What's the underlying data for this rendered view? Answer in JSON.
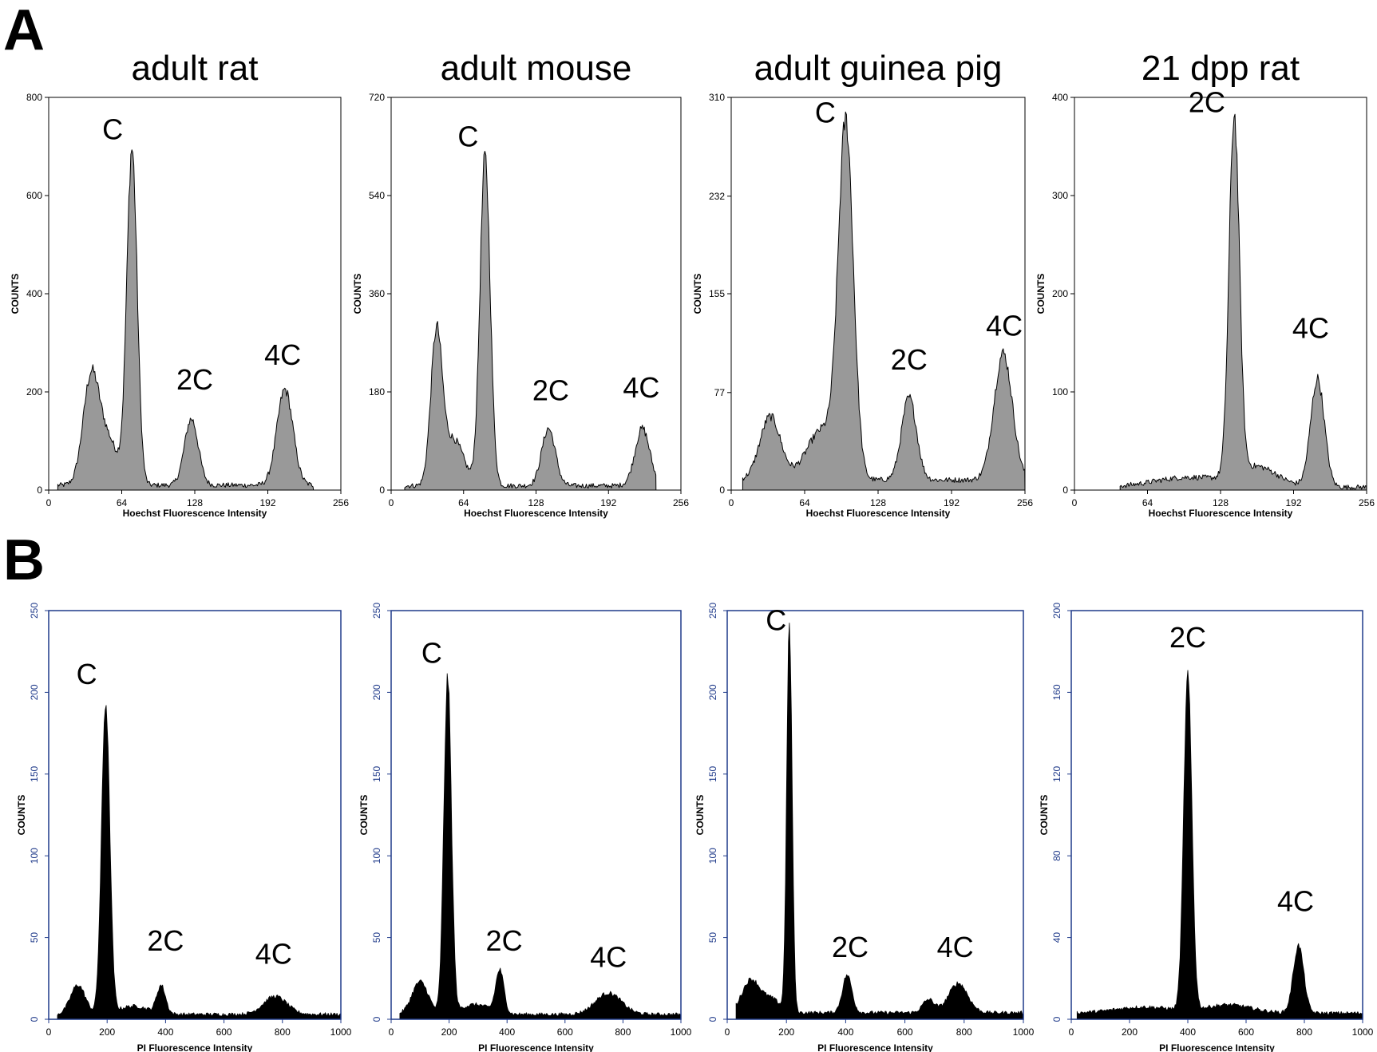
{
  "figure": {
    "panel_labels": [
      "A",
      "B"
    ],
    "colors": {
      "row_a_fill": "#999999",
      "row_a_stroke": "#000000",
      "row_b_fill": "#000000",
      "row_b_axis": "#1f3a8a",
      "background": "#ffffff"
    }
  },
  "chart_data": [
    {
      "panel": "A",
      "type": "area",
      "title": "adult rat",
      "xlabel": "Hoechst Fluorescence Intensity",
      "ylabel": "COUNTS",
      "xlim": [
        0,
        256
      ],
      "ylim": [
        0,
        800
      ],
      "xticks": [
        0,
        64,
        128,
        192,
        256
      ],
      "xtick_labels": [
        "0",
        "64",
        "128",
        "192",
        "256"
      ],
      "yticks": [
        0,
        200,
        400,
        600,
        800
      ],
      "ytick_labels": [
        "0",
        "200",
        "400",
        "600",
        "800"
      ],
      "x_start": 8,
      "x_end": 232,
      "baseline": 10,
      "peaks": [
        [
          37,
          210,
          7
        ],
        [
          52,
          90,
          9
        ],
        [
          73,
          680,
          4.5
        ],
        [
          125,
          135,
          6
        ],
        [
          207,
          195,
          7
        ]
      ],
      "annotations": [
        {
          "text": "C",
          "x": 56,
          "y": 715
        },
        {
          "text": "2C",
          "x": 128,
          "y": 205
        },
        {
          "text": "4C",
          "x": 205,
          "y": 255
        }
      ]
    },
    {
      "panel": "A",
      "type": "area",
      "title": "adult mouse",
      "xlabel": "Hoechst Fluorescence Intensity",
      "ylabel": "COUNTS",
      "xlim": [
        0,
        256
      ],
      "ylim": [
        0,
        720
      ],
      "xticks": [
        0,
        64,
        128,
        192,
        256
      ],
      "xtick_labels": [
        "0",
        "64",
        "128",
        "192",
        "256"
      ],
      "yticks": [
        0,
        180,
        360,
        540,
        720
      ],
      "ytick_labels": [
        "0",
        "180",
        "360",
        "540",
        "720"
      ],
      "x_start": 12,
      "x_end": 234,
      "baseline": 8,
      "peaks": [
        [
          40,
          270,
          5
        ],
        [
          55,
          85,
          9
        ],
        [
          83,
          600,
          4.5
        ],
        [
          139,
          105,
          6
        ],
        [
          222,
          105,
          6.5
        ]
      ],
      "annotations": [
        {
          "text": "C",
          "x": 68,
          "y": 630
        },
        {
          "text": "2C",
          "x": 141,
          "y": 165
        },
        {
          "text": "4C",
          "x": 221,
          "y": 170
        }
      ]
    },
    {
      "panel": "A",
      "type": "area",
      "title": "adult guinea pig",
      "xlabel": "Hoechst Fluorescence Intensity",
      "ylabel": "COUNTS",
      "xlim": [
        0,
        256
      ],
      "ylim": [
        0,
        310
      ],
      "xticks": [
        0,
        64,
        128,
        192,
        256
      ],
      "xtick_labels": [
        "0",
        "64",
        "128",
        "192",
        "256"
      ],
      "yticks": [
        0,
        77,
        155,
        232,
        310
      ],
      "ytick_labels": [
        "0",
        "77",
        "155",
        "232",
        "310"
      ],
      "x_start": 10,
      "x_end": 256,
      "baseline": 8,
      "peaks": [
        [
          34,
          50,
          9
        ],
        [
          80,
          40,
          14
        ],
        [
          100,
          270,
          6.5
        ],
        [
          155,
          65,
          6.5
        ],
        [
          237,
          100,
          8
        ]
      ],
      "annotations": [
        {
          "text": "C",
          "x": 82,
          "y": 290
        },
        {
          "text": "2C",
          "x": 155,
          "y": 95
        },
        {
          "text": "4C",
          "x": 238,
          "y": 122
        }
      ]
    },
    {
      "panel": "A",
      "type": "area",
      "title": "21 dpp rat",
      "xlabel": "Hoechst Fluorescence Intensity",
      "ylabel": "COUNTS",
      "xlim": [
        0,
        256
      ],
      "ylim": [
        0,
        400
      ],
      "xticks": [
        0,
        64,
        128,
        192,
        256
      ],
      "xtick_labels": [
        "0",
        "64",
        "128",
        "192",
        "256"
      ],
      "yticks": [
        0,
        100,
        200,
        300,
        400
      ],
      "ytick_labels": [
        "0",
        "100",
        "200",
        "300",
        "400"
      ],
      "x_start": 40,
      "x_end": 256,
      "baseline": 3,
      "peaks": [
        [
          140,
          365,
          4.5
        ],
        [
          160,
          20,
          18
        ],
        [
          213,
          110,
          6
        ],
        [
          100,
          10,
          30
        ]
      ],
      "annotations": [
        {
          "text": "2C",
          "x": 116,
          "y": 385
        },
        {
          "text": "4C",
          "x": 207,
          "y": 155
        }
      ]
    },
    {
      "panel": "B",
      "type": "area",
      "xlabel": "PI Fluorescence Intensity",
      "ylabel": "COUNTS",
      "xlim": [
        0,
        1000
      ],
      "ylim": [
        0,
        250
      ],
      "xticks": [
        0,
        200,
        400,
        600,
        800,
        1000
      ],
      "xtick_labels": [
        "0",
        "200",
        "400",
        "600",
        "800",
        "1000"
      ],
      "yticks": [
        0,
        50,
        100,
        150,
        200,
        250
      ],
      "ytick_labels": [
        "0",
        "50",
        "100",
        "150",
        "200",
        "250"
      ],
      "x_start": 30,
      "x_end": 1000,
      "baseline": 3,
      "peaks": [
        [
          100,
          18,
          25
        ],
        [
          195,
          190,
          14
        ],
        [
          385,
          17,
          15
        ],
        [
          775,
          11,
          40
        ],
        [
          290,
          5,
          50
        ]
      ],
      "annotations": [
        {
          "text": "C",
          "x": 130,
          "y": 205
        },
        {
          "text": "2C",
          "x": 400,
          "y": 42
        },
        {
          "text": "4C",
          "x": 770,
          "y": 34
        }
      ]
    },
    {
      "panel": "B",
      "type": "area",
      "xlabel": "PI Fluorescence Intensity",
      "ylabel": "COUNTS",
      "xlim": [
        0,
        1000
      ],
      "ylim": [
        0,
        250
      ],
      "xticks": [
        0,
        200,
        400,
        600,
        800,
        1000
      ],
      "xtick_labels": [
        "0",
        "200",
        "400",
        "600",
        "800",
        "1000"
      ],
      "yticks": [
        0,
        50,
        100,
        150,
        200,
        250
      ],
      "ytick_labels": [
        "0",
        "50",
        "100",
        "150",
        "200",
        "250"
      ],
      "x_start": 30,
      "x_end": 1000,
      "baseline": 3,
      "peaks": [
        [
          100,
          20,
          28
        ],
        [
          195,
          205,
          13
        ],
        [
          375,
          26,
          14
        ],
        [
          750,
          13,
          45
        ],
        [
          290,
          6,
          50
        ]
      ],
      "annotations": [
        {
          "text": "C",
          "x": 140,
          "y": 218
        },
        {
          "text": "2C",
          "x": 390,
          "y": 42
        },
        {
          "text": "4C",
          "x": 750,
          "y": 32
        }
      ]
    },
    {
      "panel": "B",
      "type": "area",
      "xlabel": "PI Fluorescence Intensity",
      "ylabel": "COUNTS",
      "xlim": [
        0,
        1000
      ],
      "ylim": [
        0,
        250
      ],
      "xticks": [
        0,
        200,
        400,
        600,
        800,
        1000
      ],
      "xtick_labels": [
        "0",
        "200",
        "400",
        "600",
        "800",
        "1000"
      ],
      "yticks": [
        0,
        50,
        100,
        150,
        200,
        250
      ],
      "ytick_labels": [
        "0",
        "50",
        "100",
        "150",
        "200",
        "250"
      ],
      "x_start": 30,
      "x_end": 1000,
      "baseline": 4,
      "peaks": [
        [
          80,
          20,
          30
        ],
        [
          210,
          236,
          9
        ],
        [
          405,
          23,
          16
        ],
        [
          780,
          18,
          32
        ],
        [
          680,
          8,
          20
        ],
        [
          150,
          8,
          30
        ]
      ],
      "annotations": [
        {
          "text": "C",
          "x": 165,
          "y": 238
        },
        {
          "text": "2C",
          "x": 415,
          "y": 38
        },
        {
          "text": "4C",
          "x": 770,
          "y": 38
        }
      ]
    },
    {
      "panel": "B",
      "type": "area",
      "xlabel": "PI Fluorescence Intensity",
      "ylabel": "COUNTS",
      "xlim": [
        0,
        1000
      ],
      "ylim": [
        0,
        200
      ],
      "xticks": [
        0,
        200,
        400,
        600,
        800,
        1000
      ],
      "xtick_labels": [
        "0",
        "200",
        "400",
        "600",
        "800",
        "1000"
      ],
      "yticks": [
        0,
        40,
        80,
        120,
        160,
        200
      ],
      "ytick_labels": [
        "0",
        "40",
        "80",
        "120",
        "160",
        "200"
      ],
      "x_start": 20,
      "x_end": 1000,
      "baseline": 3,
      "peaks": [
        [
          400,
          163,
          14
        ],
        [
          780,
          33,
          18
        ],
        [
          540,
          4,
          80
        ],
        [
          250,
          3,
          100
        ]
      ],
      "annotations": [
        {
          "text": "2C",
          "x": 400,
          "y": 182
        },
        {
          "text": "4C",
          "x": 770,
          "y": 53
        }
      ]
    }
  ]
}
